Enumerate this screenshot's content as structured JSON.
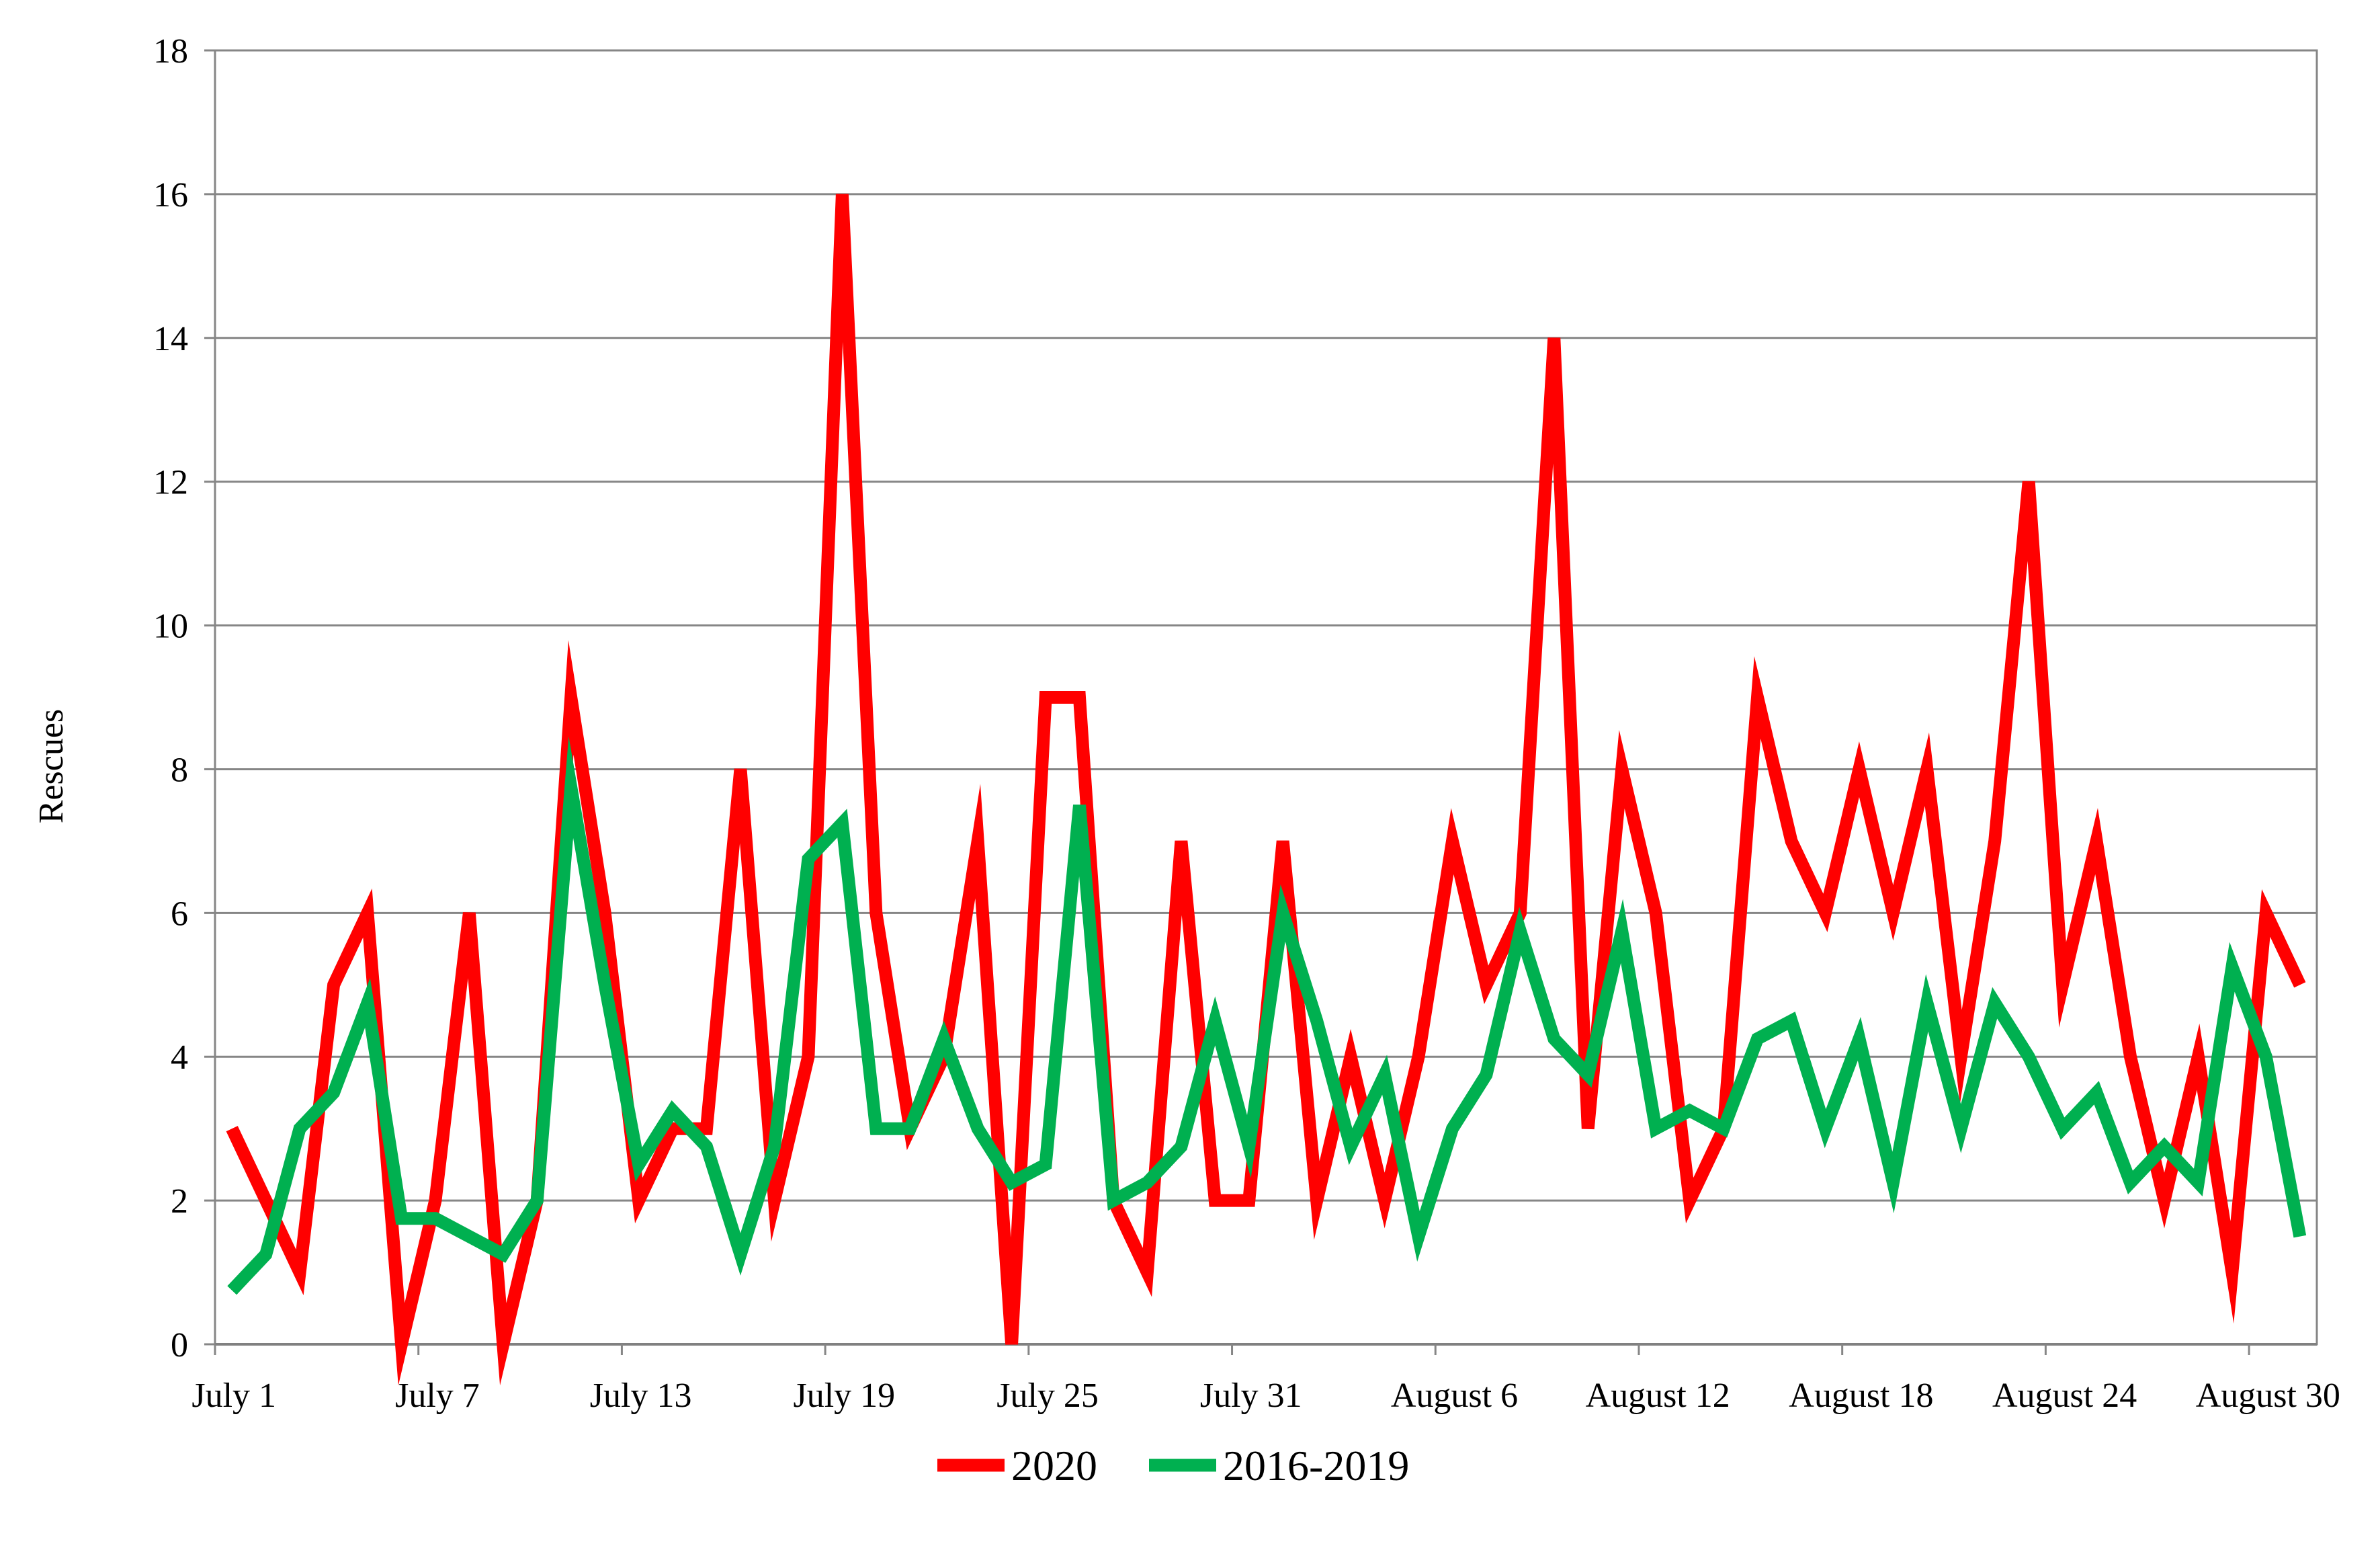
{
  "chart_data": {
    "type": "line",
    "ylabel": "Rescues",
    "xlabel": "",
    "title": "",
    "ylim": [
      0,
      18
    ],
    "yticks": [
      0,
      2,
      4,
      6,
      8,
      10,
      12,
      14,
      16,
      18
    ],
    "x_categories_count": 62,
    "x_tick_labels": [
      {
        "index": 0,
        "label": "July 1"
      },
      {
        "index": 6,
        "label": "July 7"
      },
      {
        "index": 12,
        "label": "July 13"
      },
      {
        "index": 18,
        "label": "July 19"
      },
      {
        "index": 24,
        "label": "July 25"
      },
      {
        "index": 30,
        "label": "July 31"
      },
      {
        "index": 36,
        "label": "August 6"
      },
      {
        "index": 42,
        "label": "August 12"
      },
      {
        "index": 48,
        "label": "August 18"
      },
      {
        "index": 54,
        "label": "August 24"
      },
      {
        "index": 60,
        "label": "August 30"
      }
    ],
    "grid": "horizontal",
    "legend_position": "bottom",
    "series": [
      {
        "name": "2020",
        "color": "#ff0000",
        "values": [
          3,
          2,
          1,
          5,
          6,
          0,
          2,
          6,
          0,
          2,
          9,
          6,
          2,
          3,
          3,
          8,
          2,
          4,
          16,
          6,
          3,
          4,
          7,
          0,
          9,
          9,
          2,
          1,
          7,
          2,
          2,
          7,
          2,
          4,
          2,
          4,
          7,
          5,
          6,
          14,
          3,
          8,
          6,
          2,
          3,
          9,
          7,
          6,
          8,
          6,
          8,
          4,
          7,
          12,
          5,
          7,
          4,
          2,
          4,
          1,
          6,
          5
        ]
      },
      {
        "name": "2016-2019",
        "color": "#00b050",
        "values": [
          0.75,
          1.25,
          3,
          3.5,
          4.75,
          1.75,
          1.75,
          1.5,
          1.25,
          2,
          7.75,
          5,
          2.5,
          3.25,
          2.75,
          1.25,
          2.75,
          6.75,
          7.25,
          3,
          3,
          4.25,
          3,
          2.25,
          2.5,
          7.5,
          2,
          2.25,
          2.75,
          4.5,
          2.75,
          6,
          4.5,
          2.75,
          3.75,
          1.5,
          3,
          3.75,
          5.75,
          4.25,
          3.75,
          5.75,
          3,
          3.25,
          3,
          4.25,
          4.5,
          3,
          4.25,
          2.25,
          4.75,
          3,
          4.75,
          4,
          3,
          3.5,
          2.25,
          2.75,
          2.25,
          5.25,
          4,
          1.5
        ]
      }
    ]
  }
}
